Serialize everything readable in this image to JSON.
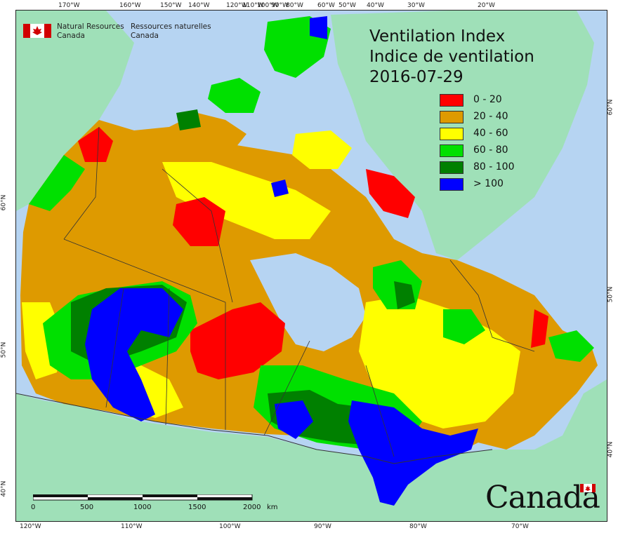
{
  "title": {
    "line1": "Ventilation Index",
    "line2": "Indice de ventilation",
    "date": "2016-07-29"
  },
  "agency": {
    "en_line1": "Natural Resources",
    "en_line2": "Canada",
    "fr_line1": "Ressources naturelles",
    "fr_line2": "Canada"
  },
  "wordmark": "Canada",
  "legend": [
    {
      "label": "0 - 20",
      "color": "#ff0000"
    },
    {
      "label": "20 - 40",
      "color": "#de9a00"
    },
    {
      "label": "40 - 60",
      "color": "#ffff00"
    },
    {
      "label": "60 - 80",
      "color": "#00e000"
    },
    {
      "label": "80 - 100",
      "color": "#008000"
    },
    {
      "label": "> 100",
      "color": "#0000ff"
    }
  ],
  "ticks": {
    "top": [
      "170°W",
      "160°W",
      "150°W",
      "140°W",
      "120°W",
      "110°W",
      "100°W",
      "90°W",
      "80°W",
      "60°W",
      "50°W",
      "40°W",
      "30°W",
      "20°W"
    ],
    "bottom": [
      "120°W",
      "110°W",
      "100°W",
      "90°W",
      "80°W",
      "70°W"
    ],
    "left": [
      "60°N",
      "50°N",
      "40°N"
    ],
    "right": [
      "60°N",
      "50°N",
      "40°N"
    ]
  },
  "scale": {
    "labels": [
      "0",
      "500",
      "1000",
      "1500",
      "2000"
    ],
    "unit": "km"
  },
  "colors": {
    "ocean": "#b6d4f2",
    "land": "#9fe0b8",
    "border": "#333333"
  }
}
